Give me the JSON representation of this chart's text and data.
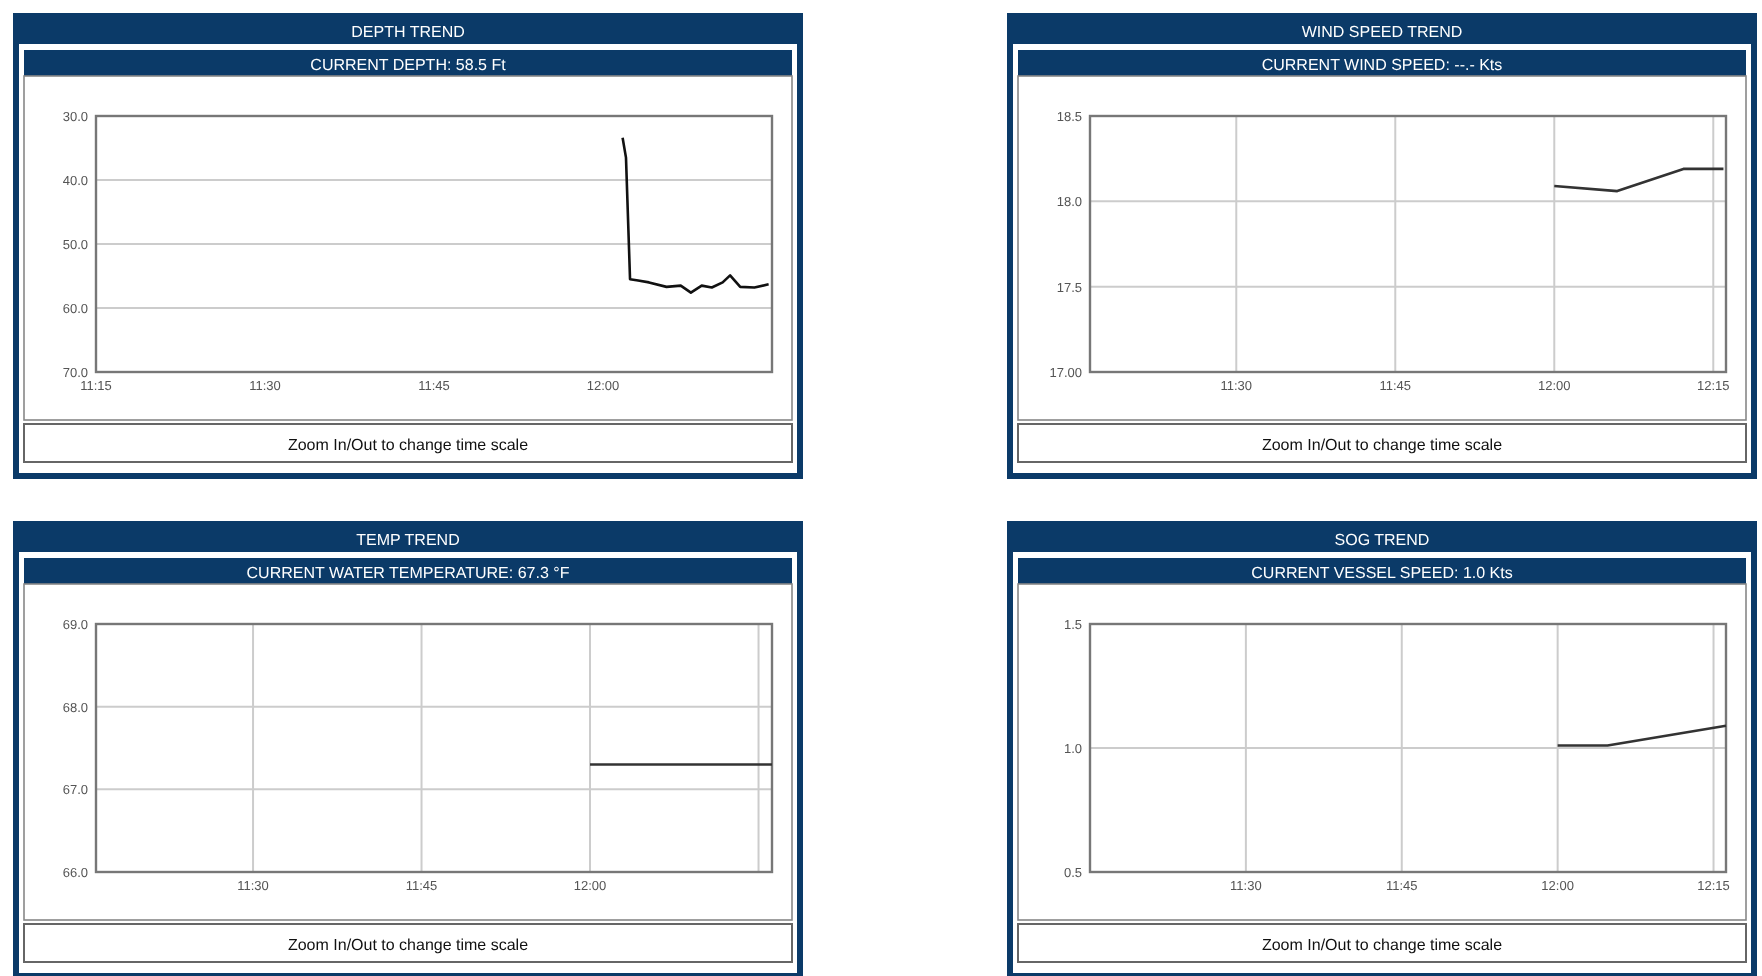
{
  "chart_data": [
    {
      "type": "line",
      "title": "DEPTH TREND",
      "subtitle": "CURRENT DEPTH: 58.5 Ft",
      "annotations": [
        "Zoom In/Out to change time scale"
      ],
      "grid": "y",
      "color": "#111111",
      "x": [
        12.029,
        12.034,
        12.04,
        12.052,
        12.068,
        12.094,
        12.115,
        12.13,
        12.146,
        12.161,
        12.177,
        12.188,
        12.203,
        12.224,
        12.245
      ],
      "values": [
        33.4,
        36.5,
        55.5,
        55.7,
        56.0,
        56.7,
        56.5,
        57.6,
        56.5,
        56.8,
        56.0,
        54.9,
        56.7,
        56.8,
        56.3
      ],
      "xlim": [
        11.25,
        12.25
      ],
      "xticks": [
        {
          "value": 11.25,
          "label": "11:15"
        },
        {
          "value": 11.5,
          "label": "11:30"
        },
        {
          "value": 11.75,
          "label": "11:45"
        },
        {
          "value": 12,
          "label": "12:00"
        }
      ],
      "ylim": [
        70,
        30
      ],
      "yticks": [
        {
          "value": 30,
          "label": "30.0"
        },
        {
          "value": 40,
          "label": "40.0"
        },
        {
          "value": 50,
          "label": "50.0"
        },
        {
          "value": 60,
          "label": "60.0"
        },
        {
          "value": 70,
          "label": "70.0"
        }
      ]
    },
    {
      "type": "line",
      "title": "WIND SPEED TREND",
      "subtitle": "CURRENT WIND SPEED: --.- Kts",
      "annotations": [
        "Zoom In/Out to change time scale"
      ],
      "grid": true,
      "color": "#333333",
      "x": [
        12.0,
        12.099,
        12.203,
        12.266
      ],
      "values": [
        18.09,
        18.06,
        18.19,
        18.19
      ],
      "xlim": [
        11.27,
        12.27
      ],
      "xticks": [
        {
          "value": 11.5,
          "label": "11:30"
        },
        {
          "value": 11.75,
          "label": "11:45"
        },
        {
          "value": 12,
          "label": "12:00"
        },
        {
          "value": 12.25,
          "label": "12:15"
        }
      ],
      "ylim": [
        17,
        18.5
      ],
      "yticks": [
        {
          "value": 17,
          "label": "17.00"
        },
        17.5,
        {
          "value": 18,
          "label": "18.0"
        },
        18.5
      ]
    },
    {
      "type": "line",
      "title": "TEMP TREND",
      "subtitle": "CURRENT WATER TEMPERATURE: 67.3 °F",
      "annotations": [
        "Zoom In/Out to change time scale"
      ],
      "grid": true,
      "color": "#333333",
      "x": [
        12.0,
        12.27
      ],
      "values": [
        67.3,
        67.3
      ],
      "xlim": [
        11.267,
        12.27
      ],
      "xticks": [
        {
          "value": 11.5,
          "label": "11:30"
        },
        {
          "value": 11.75,
          "label": "11:45"
        },
        {
          "value": 12,
          "label": "12:00"
        },
        {
          "value": 12.25,
          "label": null
        }
      ],
      "ylim": [
        66,
        69
      ],
      "yticks": [
        {
          "value": 66,
          "label": "66.0"
        },
        {
          "value": 67,
          "label": "67.0"
        },
        {
          "value": 68,
          "label": "68.0"
        },
        {
          "value": 69,
          "label": "69.0"
        }
      ]
    },
    {
      "type": "line",
      "title": "SOG TREND",
      "subtitle": "CURRENT VESSEL SPEED:  1.0 Kts",
      "annotations": [
        "Zoom In/Out to change time scale"
      ],
      "grid": true,
      "color": "#333333",
      "x": [
        12.0,
        12.08,
        12.27
      ],
      "values": [
        1.01,
        1.01,
        1.09
      ],
      "xlim": [
        11.25,
        12.27
      ],
      "xticks": [
        {
          "value": 11.5,
          "label": "11:30"
        },
        {
          "value": 11.75,
          "label": "11:45"
        },
        {
          "value": 12,
          "label": "12:00"
        },
        {
          "value": 12.25,
          "label": "12:15"
        }
      ],
      "ylim": [
        0.5,
        1.5
      ],
      "yticks": [
        0.5,
        {
          "value": 1,
          "label": "1.0"
        },
        1.5
      ]
    }
  ]
}
